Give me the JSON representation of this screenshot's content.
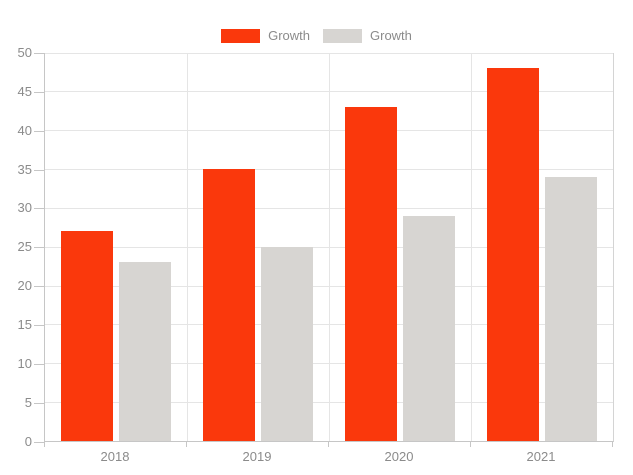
{
  "chart_data": {
    "type": "bar",
    "title": "",
    "xlabel": "",
    "ylabel": "",
    "categories": [
      "2018",
      "2019",
      "2020",
      "2021"
    ],
    "series": [
      {
        "name": "Growth",
        "color": "#fa380c",
        "values": [
          27,
          35,
          43,
          48
        ]
      },
      {
        "name": "Growth",
        "color": "#d7d5d2",
        "values": [
          23,
          25,
          29,
          34
        ]
      }
    ],
    "ylim": [
      0,
      50
    ],
    "y_ticks": [
      0,
      5,
      10,
      15,
      20,
      25,
      30,
      35,
      40,
      45,
      50
    ],
    "grid": true,
    "legend_position": "top-center"
  },
  "colors": {
    "background": "#ffffff",
    "axis_line": "#c6c6c6",
    "gridline": "#e5e5e5",
    "label_text": "#8b8b8b"
  }
}
